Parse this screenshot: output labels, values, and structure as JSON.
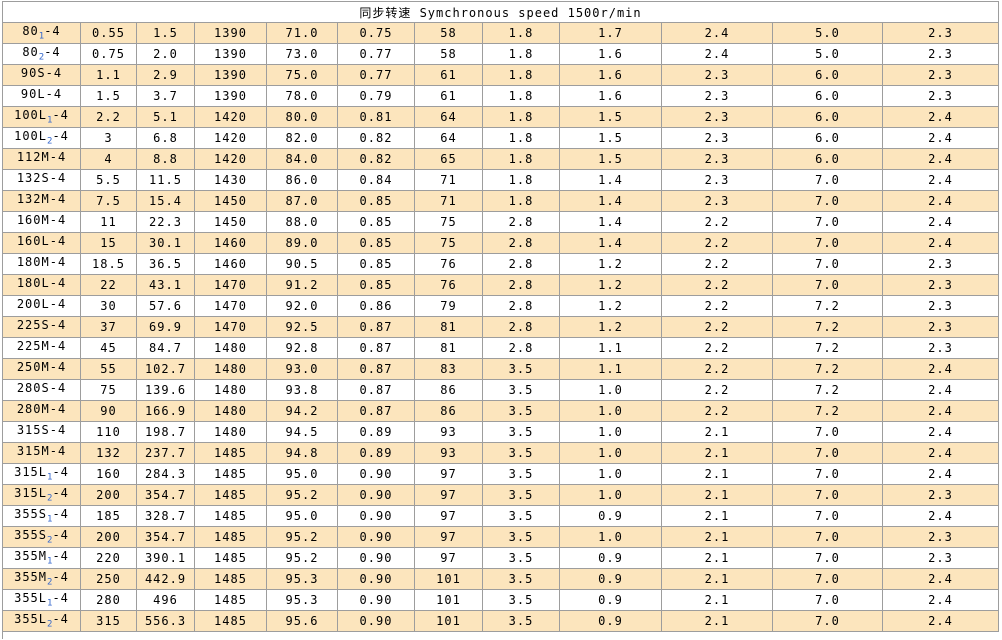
{
  "colors": {
    "stripe": "#fce5bd",
    "border": "#9d9d9d",
    "subscript_blue": "#3366cc",
    "text": "#000000",
    "background": "#ffffff"
  },
  "table": {
    "title": "同步转速 Symchronous speed 1500r/min",
    "rows": [
      {
        "model": {
          "pre": "80",
          "sub": "1",
          "post": "-4"
        },
        "values": [
          "0.55",
          "1.5",
          "1390",
          "71.0",
          "0.75",
          "58",
          "1.8",
          "1.7",
          "2.4",
          "5.0",
          "2.3"
        ]
      },
      {
        "model": {
          "pre": "80",
          "sub": "2",
          "post": "-4"
        },
        "values": [
          "0.75",
          "2.0",
          "1390",
          "73.0",
          "0.77",
          "58",
          "1.8",
          "1.6",
          "2.4",
          "5.0",
          "2.3"
        ]
      },
      {
        "model": {
          "pre": "90S",
          "sub": "",
          "post": "-4"
        },
        "values": [
          "1.1",
          "2.9",
          "1390",
          "75.0",
          "0.77",
          "61",
          "1.8",
          "1.6",
          "2.3",
          "6.0",
          "2.3"
        ]
      },
      {
        "model": {
          "pre": "90L",
          "sub": "",
          "post": "-4"
        },
        "values": [
          "1.5",
          "3.7",
          "1390",
          "78.0",
          "0.79",
          "61",
          "1.8",
          "1.6",
          "2.3",
          "6.0",
          "2.3"
        ]
      },
      {
        "model": {
          "pre": "100L",
          "sub": "1",
          "post": "-4"
        },
        "values": [
          "2.2",
          "5.1",
          "1420",
          "80.0",
          "0.81",
          "64",
          "1.8",
          "1.5",
          "2.3",
          "6.0",
          "2.4"
        ]
      },
      {
        "model": {
          "pre": "100L",
          "sub": "2",
          "post": "-4"
        },
        "values": [
          "3",
          "6.8",
          "1420",
          "82.0",
          "0.82",
          "64",
          "1.8",
          "1.5",
          "2.3",
          "6.0",
          "2.4"
        ]
      },
      {
        "model": {
          "pre": "112M",
          "sub": "",
          "post": "-4"
        },
        "values": [
          "4",
          "8.8",
          "1420",
          "84.0",
          "0.82",
          "65",
          "1.8",
          "1.5",
          "2.3",
          "6.0",
          "2.4"
        ]
      },
      {
        "model": {
          "pre": "132S",
          "sub": "",
          "post": "-4"
        },
        "values": [
          "5.5",
          "11.5",
          "1430",
          "86.0",
          "0.84",
          "71",
          "1.8",
          "1.4",
          "2.3",
          "7.0",
          "2.4"
        ]
      },
      {
        "model": {
          "pre": "132M",
          "sub": "",
          "post": "-4"
        },
        "values": [
          "7.5",
          "15.4",
          "1450",
          "87.0",
          "0.85",
          "71",
          "1.8",
          "1.4",
          "2.3",
          "7.0",
          "2.4"
        ]
      },
      {
        "model": {
          "pre": "160M",
          "sub": "",
          "post": "-4"
        },
        "values": [
          "11",
          "22.3",
          "1450",
          "88.0",
          "0.85",
          "75",
          "2.8",
          "1.4",
          "2.2",
          "7.0",
          "2.4"
        ]
      },
      {
        "model": {
          "pre": "160L",
          "sub": "",
          "post": "-4"
        },
        "values": [
          "15",
          "30.1",
          "1460",
          "89.0",
          "0.85",
          "75",
          "2.8",
          "1.4",
          "2.2",
          "7.0",
          "2.4"
        ]
      },
      {
        "model": {
          "pre": "180M",
          "sub": "",
          "post": "-4"
        },
        "values": [
          "18.5",
          "36.5",
          "1460",
          "90.5",
          "0.85",
          "76",
          "2.8",
          "1.2",
          "2.2",
          "7.0",
          "2.3"
        ]
      },
      {
        "model": {
          "pre": "180L",
          "sub": "",
          "post": "-4"
        },
        "values": [
          "22",
          "43.1",
          "1470",
          "91.2",
          "0.85",
          "76",
          "2.8",
          "1.2",
          "2.2",
          "7.0",
          "2.3"
        ]
      },
      {
        "model": {
          "pre": "200L",
          "sub": "",
          "post": "-4"
        },
        "values": [
          "30",
          "57.6",
          "1470",
          "92.0",
          "0.86",
          "79",
          "2.8",
          "1.2",
          "2.2",
          "7.2",
          "2.3"
        ]
      },
      {
        "model": {
          "pre": "225S",
          "sub": "",
          "post": "-4"
        },
        "values": [
          "37",
          "69.9",
          "1470",
          "92.5",
          "0.87",
          "81",
          "2.8",
          "1.2",
          "2.2",
          "7.2",
          "2.3"
        ]
      },
      {
        "model": {
          "pre": "225M",
          "sub": "",
          "post": "-4"
        },
        "values": [
          "45",
          "84.7",
          "1480",
          "92.8",
          "0.87",
          "81",
          "2.8",
          "1.1",
          "2.2",
          "7.2",
          "2.3"
        ]
      },
      {
        "model": {
          "pre": "250M",
          "sub": "",
          "post": "-4"
        },
        "values": [
          "55",
          "102.7",
          "1480",
          "93.0",
          "0.87",
          "83",
          "3.5",
          "1.1",
          "2.2",
          "7.2",
          "2.4"
        ]
      },
      {
        "model": {
          "pre": "280S",
          "sub": "",
          "post": "-4"
        },
        "values": [
          "75",
          "139.6",
          "1480",
          "93.8",
          "0.87",
          "86",
          "3.5",
          "1.0",
          "2.2",
          "7.2",
          "2.4"
        ]
      },
      {
        "model": {
          "pre": "280M",
          "sub": "",
          "post": "-4"
        },
        "values": [
          "90",
          "166.9",
          "1480",
          "94.2",
          "0.87",
          "86",
          "3.5",
          "1.0",
          "2.2",
          "7.2",
          "2.4"
        ]
      },
      {
        "model": {
          "pre": "315S",
          "sub": "",
          "post": "-4"
        },
        "values": [
          "110",
          "198.7",
          "1480",
          "94.5",
          "0.89",
          "93",
          "3.5",
          "1.0",
          "2.1",
          "7.0",
          "2.4"
        ]
      },
      {
        "model": {
          "pre": "315M",
          "sub": "",
          "post": "-4"
        },
        "values": [
          "132",
          "237.7",
          "1485",
          "94.8",
          "0.89",
          "93",
          "3.5",
          "1.0",
          "2.1",
          "7.0",
          "2.4"
        ]
      },
      {
        "model": {
          "pre": "315L",
          "sub": "1",
          "post": "-4"
        },
        "values": [
          "160",
          "284.3",
          "1485",
          "95.0",
          "0.90",
          "97",
          "3.5",
          "1.0",
          "2.1",
          "7.0",
          "2.4"
        ]
      },
      {
        "model": {
          "pre": "315L",
          "sub": "2",
          "post": "-4"
        },
        "values": [
          "200",
          "354.7",
          "1485",
          "95.2",
          "0.90",
          "97",
          "3.5",
          "1.0",
          "2.1",
          "7.0",
          "2.3"
        ]
      },
      {
        "model": {
          "pre": "355S",
          "sub": "1",
          "post": "-4"
        },
        "values": [
          "185",
          "328.7",
          "1485",
          "95.0",
          "0.90",
          "97",
          "3.5",
          "0.9",
          "2.1",
          "7.0",
          "2.4"
        ]
      },
      {
        "model": {
          "pre": "355S",
          "sub": "2",
          "post": "-4"
        },
        "values": [
          "200",
          "354.7",
          "1485",
          "95.2",
          "0.90",
          "97",
          "3.5",
          "1.0",
          "2.1",
          "7.0",
          "2.3"
        ]
      },
      {
        "model": {
          "pre": "355M",
          "sub": "1",
          "post": "-4"
        },
        "values": [
          "220",
          "390.1",
          "1485",
          "95.2",
          "0.90",
          "97",
          "3.5",
          "0.9",
          "2.1",
          "7.0",
          "2.3"
        ]
      },
      {
        "model": {
          "pre": "355M",
          "sub": "2",
          "post": "-4"
        },
        "values": [
          "250",
          "442.9",
          "1485",
          "95.3",
          "0.90",
          "101",
          "3.5",
          "0.9",
          "2.1",
          "7.0",
          "2.4"
        ]
      },
      {
        "model": {
          "pre": "355L",
          "sub": "1",
          "post": "-4"
        },
        "values": [
          "280",
          "496",
          "1485",
          "95.3",
          "0.90",
          "101",
          "3.5",
          "0.9",
          "2.1",
          "7.0",
          "2.4"
        ]
      },
      {
        "model": {
          "pre": "355L",
          "sub": "2",
          "post": "-4"
        },
        "values": [
          "315",
          "556.3",
          "1485",
          "95.6",
          "0.90",
          "101",
          "3.5",
          "0.9",
          "2.1",
          "7.0",
          "2.4"
        ]
      }
    ]
  }
}
